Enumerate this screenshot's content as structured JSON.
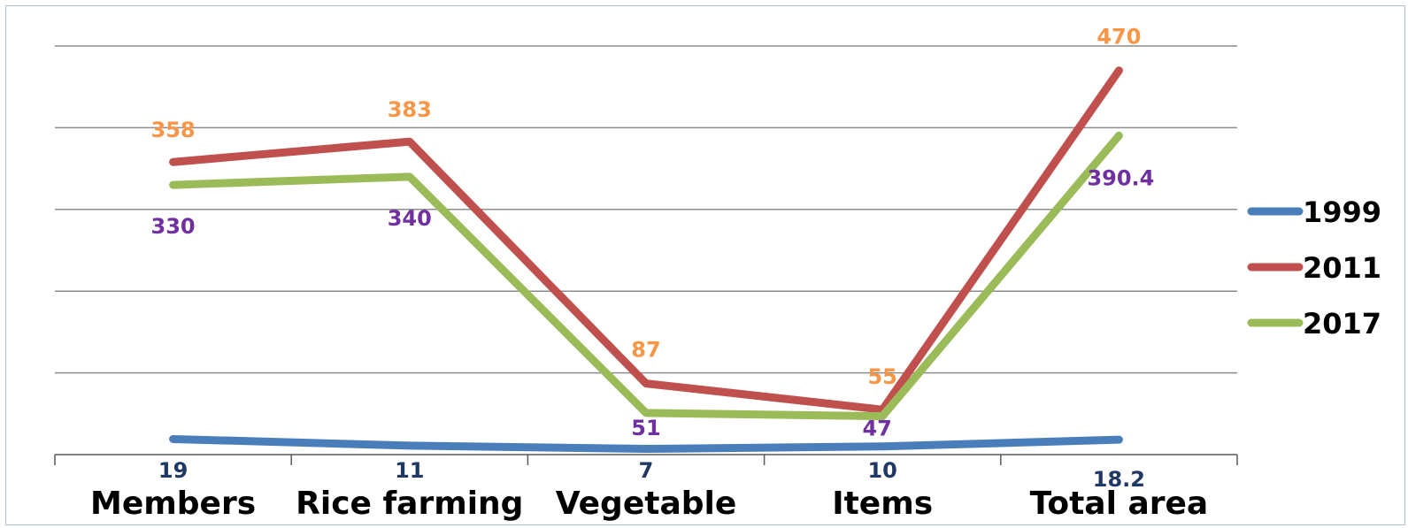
{
  "chart_data": {
    "type": "line",
    "categories": [
      "Members",
      "Rice farming",
      "Vegetable",
      "Items",
      "Total area"
    ],
    "series": [
      {
        "name": "1999",
        "color": "#4a7ebb",
        "values": [
          19,
          11,
          7,
          10,
          18.2
        ],
        "labels": [
          "19",
          "11",
          "7",
          "10",
          "18.2"
        ],
        "label_color": "#1f3864"
      },
      {
        "name": "2011",
        "color": "#c0504d",
        "values": [
          358,
          383,
          87,
          55,
          470
        ],
        "labels": [
          "358",
          "383",
          "87",
          "55",
          "470"
        ],
        "label_color": "#f79646"
      },
      {
        "name": "2017",
        "color": "#9bbb59",
        "values": [
          330,
          340,
          51,
          47,
          390.4
        ],
        "labels": [
          "330",
          "340",
          "51",
          "47",
          "390.4"
        ],
        "label_color": "#7030a0"
      }
    ],
    "ylim": [
      0,
      500
    ],
    "grid": true,
    "legend": "right"
  }
}
